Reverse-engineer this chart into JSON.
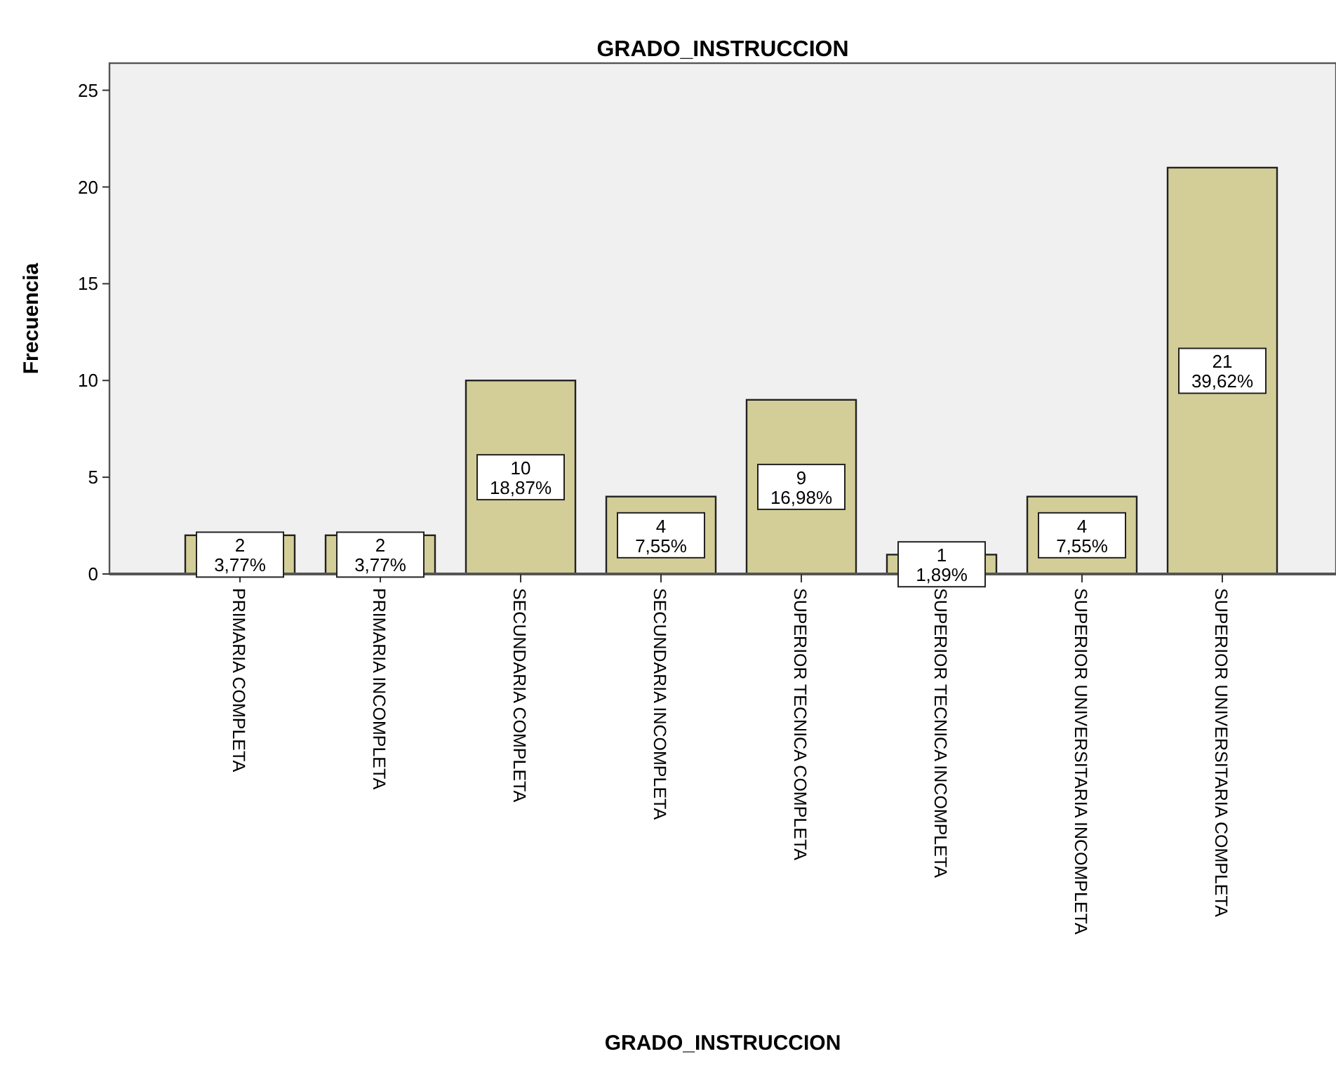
{
  "chart_data": {
    "type": "bar",
    "title": "GRADO_INSTRUCCION",
    "xlabel": "GRADO_INSTRUCCION",
    "ylabel": "Frecuencia",
    "categories": [
      "PRIMARIA COMPLETA",
      "PRIMARIA INCOMPLETA",
      "SECUNDARIA COMPLETA",
      "SECUNDARIA INCOMPLETA",
      "SUPERIOR TECNICA COMPLETA",
      "SUPERIOR TECNICA INCOMPLETA",
      "SUPERIOR UNIVERSITARIA INCOMPLETA",
      "SUPERIOR UNIVERSITARIA COMPLETA"
    ],
    "values": [
      2,
      2,
      10,
      4,
      9,
      1,
      4,
      21
    ],
    "value_labels": [
      "2\n3,77%",
      "2\n3,77%",
      "10\n18,87%",
      "4\n7,55%",
      "9\n16,98%",
      "1\n1,89%",
      "4\n7,55%",
      "21\n39,62%"
    ],
    "color": "#d3ce98",
    "ylim": [
      0,
      26.4
    ],
    "yticks": [
      0,
      5,
      10,
      15,
      20,
      25
    ],
    "grid": false
  }
}
